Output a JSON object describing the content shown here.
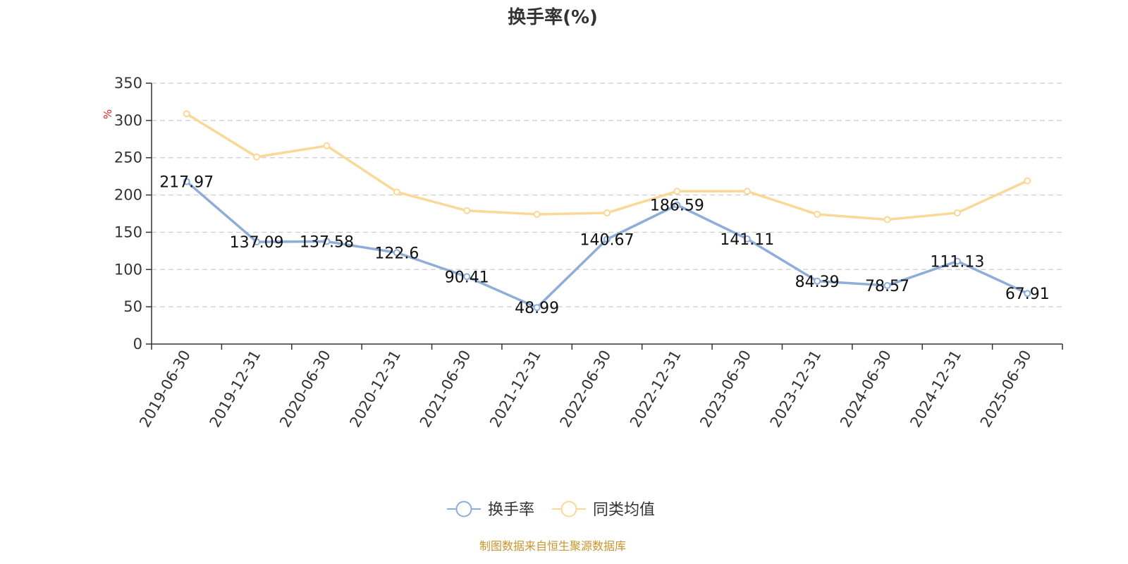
{
  "chart_data": {
    "type": "line",
    "title": "换手率(%)",
    "ylabel": "%",
    "xlabel": "",
    "ylim": [
      0,
      350
    ],
    "yticks": [
      0,
      50,
      100,
      150,
      200,
      250,
      300,
      350
    ],
    "grid": true,
    "legend_position": "bottom",
    "categories": [
      "2019-06-30",
      "2019-12-31",
      "2020-06-30",
      "2020-12-31",
      "2021-06-30",
      "2021-12-31",
      "2022-06-30",
      "2022-12-31",
      "2023-06-30",
      "2023-12-31",
      "2024-06-30",
      "2024-12-31",
      "2025-06-30"
    ],
    "series": [
      {
        "name": "换手率",
        "color": "#8eadd9",
        "values": [
          217.97,
          137.09,
          137.58,
          122.6,
          90.41,
          48.99,
          140.67,
          186.59,
          141.11,
          84.39,
          78.57,
          111.13,
          67.91
        ],
        "data_labels": [
          "217.97",
          "137.09",
          "137.58",
          "122.6",
          "90.41",
          "48.99",
          "140.67",
          "186.59",
          "141.11",
          "84.39",
          "78.57",
          "111.13",
          "67.91"
        ]
      },
      {
        "name": "同类均值",
        "color": "#fad898",
        "values": [
          309,
          251,
          266,
          204,
          179,
          174,
          176,
          205,
          205,
          174,
          167,
          176,
          219
        ]
      }
    ],
    "source": "制图数据来自恒生聚源数据库"
  },
  "colors": {
    "axis": "#333333",
    "grid": "#cccccc",
    "unit": "#e02020",
    "source": "#c8962e"
  }
}
